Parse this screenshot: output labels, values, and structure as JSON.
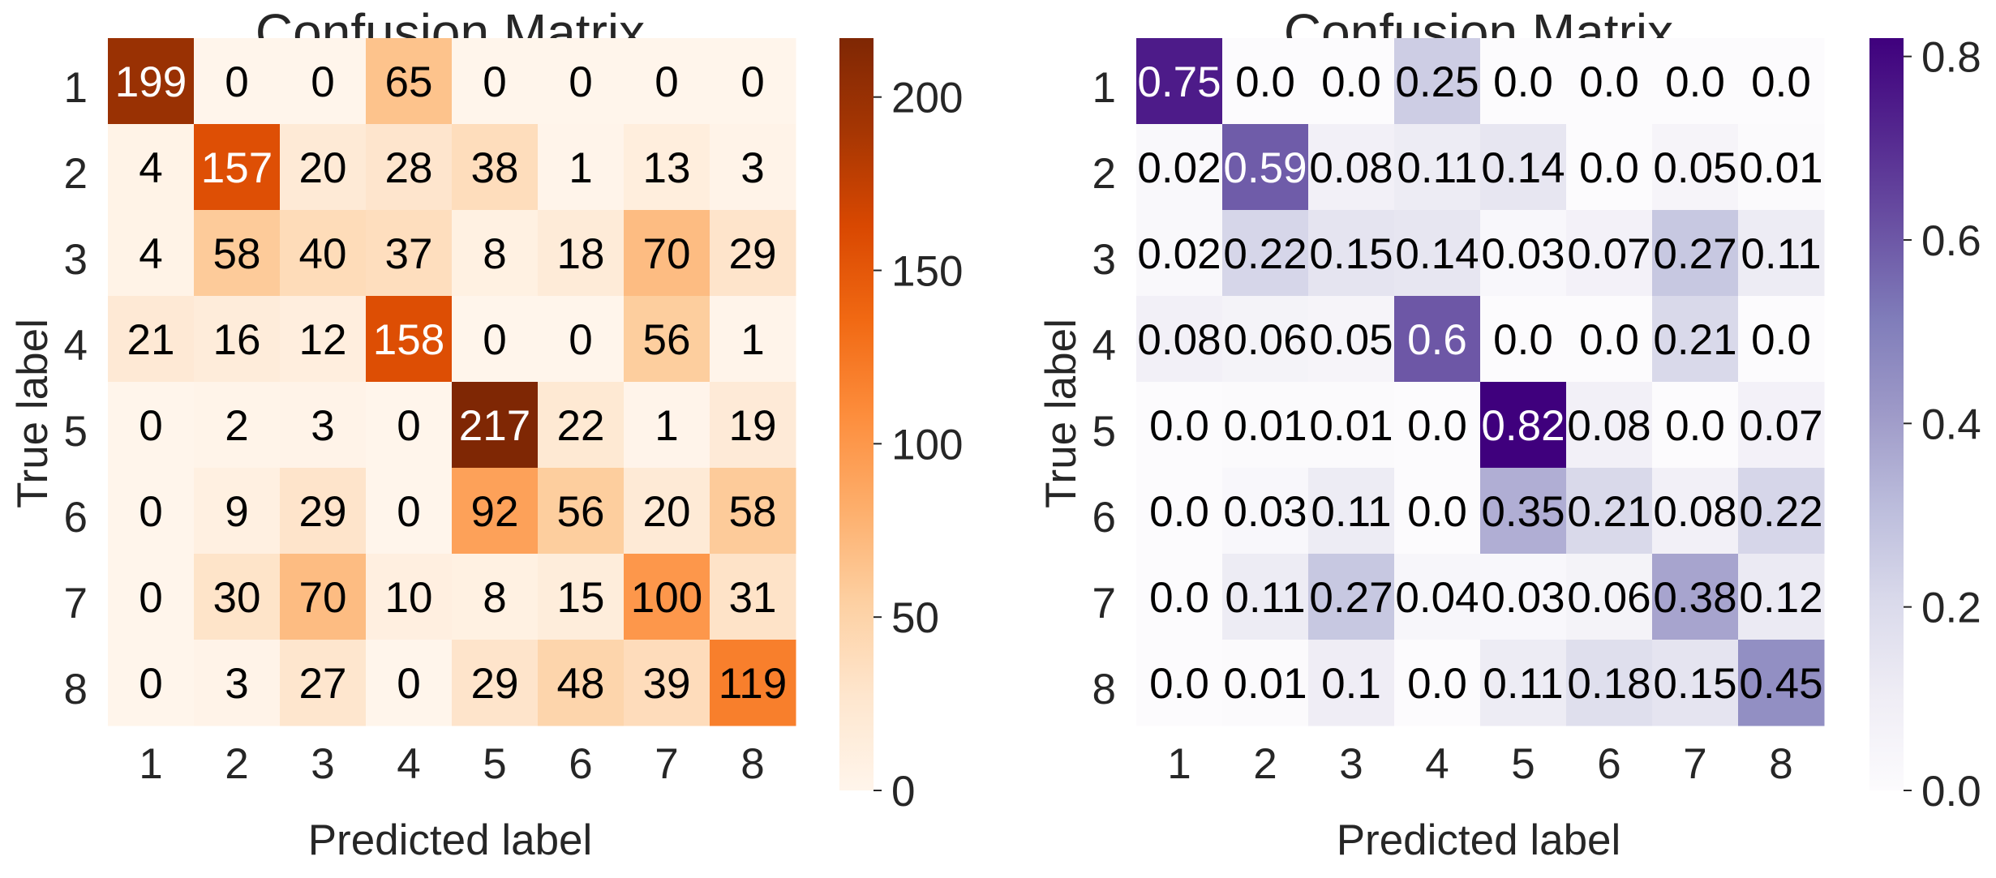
{
  "chart_data": [
    {
      "type": "heatmap",
      "title": "Confusion Matrix",
      "xlabel": "Predicted label",
      "ylabel": "True label",
      "x_ticks": [
        "1",
        "2",
        "3",
        "4",
        "5",
        "6",
        "7",
        "8"
      ],
      "y_ticks": [
        "1",
        "2",
        "3",
        "4",
        "5",
        "6",
        "7",
        "8"
      ],
      "colormap": "Oranges",
      "colors": {
        "low": "#fff5eb",
        "high": "#7f2704"
      },
      "vmin": 0,
      "vmax": 217,
      "colorbar_ticks": [
        0,
        50,
        100,
        150,
        200
      ],
      "values": [
        [
          199,
          0,
          0,
          65,
          0,
          0,
          0,
          0
        ],
        [
          4,
          157,
          20,
          28,
          38,
          1,
          13,
          3
        ],
        [
          4,
          58,
          40,
          37,
          8,
          18,
          70,
          29
        ],
        [
          21,
          16,
          12,
          158,
          0,
          0,
          56,
          1
        ],
        [
          0,
          2,
          3,
          0,
          217,
          22,
          1,
          19
        ],
        [
          0,
          9,
          29,
          0,
          92,
          56,
          20,
          58
        ],
        [
          0,
          30,
          70,
          10,
          8,
          15,
          100,
          31
        ],
        [
          0,
          3,
          27,
          0,
          29,
          48,
          39,
          119
        ]
      ],
      "annotations": [
        [
          "199",
          "0",
          "0",
          "65",
          "0",
          "0",
          "0",
          "0"
        ],
        [
          "4",
          "157",
          "20",
          "28",
          "38",
          "1",
          "13",
          "3"
        ],
        [
          "4",
          "58",
          "40",
          "37",
          "8",
          "18",
          "70",
          "29"
        ],
        [
          "21",
          "16",
          "12",
          "158",
          "0",
          "0",
          "56",
          "1"
        ],
        [
          "0",
          "2",
          "3",
          "0",
          "217",
          "22",
          "1",
          "19"
        ],
        [
          "0",
          "9",
          "29",
          "0",
          "92",
          "56",
          "20",
          "58"
        ],
        [
          "0",
          "30",
          "70",
          "10",
          "8",
          "15",
          "100",
          "31"
        ],
        [
          "0",
          "3",
          "27",
          "0",
          "29",
          "48",
          "39",
          "119"
        ]
      ]
    },
    {
      "type": "heatmap",
      "title": "Confusion Matrix",
      "xlabel": "Predicted label",
      "ylabel": "True label",
      "x_ticks": [
        "1",
        "2",
        "3",
        "4",
        "5",
        "6",
        "7",
        "8"
      ],
      "y_ticks": [
        "1",
        "2",
        "3",
        "4",
        "5",
        "6",
        "7",
        "8"
      ],
      "colormap": "Purples",
      "colors": {
        "low": "#fcfbfd",
        "high": "#3f007d"
      },
      "vmin": 0,
      "vmax": 0.82,
      "colorbar_ticks": [
        0.0,
        0.2,
        0.4,
        0.6,
        0.8
      ],
      "colorbar_tick_labels": [
        "0.0",
        "0.2",
        "0.4",
        "0.6",
        "0.8"
      ],
      "values": [
        [
          0.75,
          0.0,
          0.0,
          0.25,
          0.0,
          0.0,
          0.0,
          0.0
        ],
        [
          0.02,
          0.59,
          0.08,
          0.11,
          0.14,
          0.0,
          0.05,
          0.01
        ],
        [
          0.02,
          0.22,
          0.15,
          0.14,
          0.03,
          0.07,
          0.27,
          0.11
        ],
        [
          0.08,
          0.06,
          0.05,
          0.6,
          0.0,
          0.0,
          0.21,
          0.0
        ],
        [
          0.0,
          0.01,
          0.01,
          0.0,
          0.82,
          0.08,
          0.0,
          0.07
        ],
        [
          0.0,
          0.03,
          0.11,
          0.0,
          0.35,
          0.21,
          0.08,
          0.22
        ],
        [
          0.0,
          0.11,
          0.27,
          0.04,
          0.03,
          0.06,
          0.38,
          0.12
        ],
        [
          0.0,
          0.01,
          0.1,
          0.0,
          0.11,
          0.18,
          0.15,
          0.45
        ]
      ],
      "annotations": [
        [
          "0.75",
          "0.0",
          "0.0",
          "0.25",
          "0.0",
          "0.0",
          "0.0",
          "0.0"
        ],
        [
          "0.02",
          "0.59",
          "0.08",
          "0.11",
          "0.14",
          "0.0",
          "0.05",
          "0.01"
        ],
        [
          "0.02",
          "0.22",
          "0.15",
          "0.14",
          "0.03",
          "0.07",
          "0.27",
          "0.11"
        ],
        [
          "0.08",
          "0.06",
          "0.05",
          "0.6",
          "0.0",
          "0.0",
          "0.21",
          "0.0"
        ],
        [
          "0.0",
          "0.01",
          "0.01",
          "0.0",
          "0.82",
          "0.08",
          "0.0",
          "0.07"
        ],
        [
          "0.0",
          "0.03",
          "0.11",
          "0.0",
          "0.35",
          "0.21",
          "0.08",
          "0.22"
        ],
        [
          "0.0",
          "0.11",
          "0.27",
          "0.04",
          "0.03",
          "0.06",
          "0.38",
          "0.12"
        ],
        [
          "0.0",
          "0.01",
          "0.1",
          "0.0",
          "0.11",
          "0.18",
          "0.15",
          "0.45"
        ]
      ]
    }
  ]
}
